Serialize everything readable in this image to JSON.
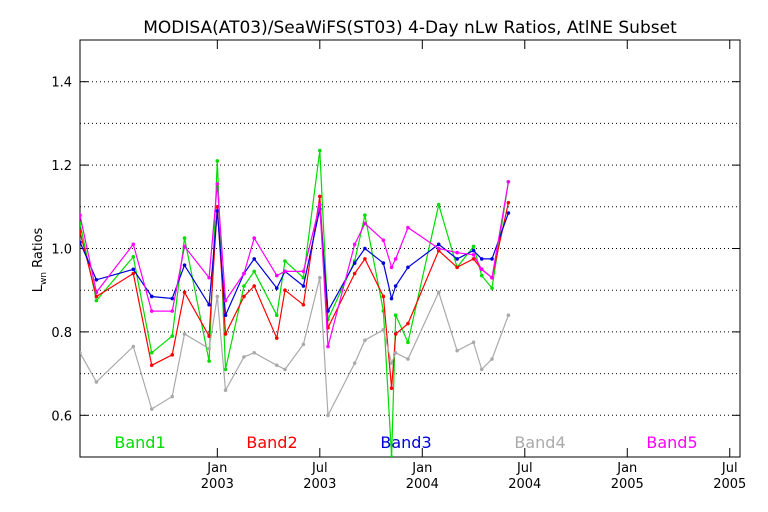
{
  "chart_data": {
    "type": "line",
    "title": "MODISA(AT03)/SeaWiFS(ST03) 4-Day nLw Ratios, AtlNE Subset",
    "ylabel_main": "L",
    "ylabel_sub": "wn",
    "ylabel_rest": " Ratios",
    "xlabel": "",
    "ylim": [
      0.5,
      1.5
    ],
    "y_ticks": [
      0.6,
      0.8,
      1.0,
      1.2,
      1.4
    ],
    "y_tick_labels": [
      "0.6",
      "0.8",
      "1.0",
      "1.2",
      "1.4"
    ],
    "grid": "horizontal dotted",
    "xlim": [
      2002.33,
      2005.55
    ],
    "x_ticks": [
      {
        "value": 2003.0,
        "month": "Jan",
        "year": "2003"
      },
      {
        "value": 2003.5,
        "month": "Jul",
        "year": "2003"
      },
      {
        "value": 2004.0,
        "month": "Jan",
        "year": "2004"
      },
      {
        "value": 2004.5,
        "month": "Jul",
        "year": "2004"
      },
      {
        "value": 2005.0,
        "month": "Jan",
        "year": "2005"
      },
      {
        "value": 2005.5,
        "month": "Jul",
        "year": "2005"
      }
    ],
    "series": [
      {
        "name": "Band1",
        "color": "#00dd00",
        "points": [
          [
            2002.33,
            1.06
          ],
          [
            2002.41,
            0.875
          ],
          [
            2002.59,
            0.98
          ],
          [
            2002.68,
            0.75
          ],
          [
            2002.78,
            0.79
          ],
          [
            2002.84,
            1.025
          ],
          [
            2002.96,
            0.73
          ],
          [
            2003.0,
            1.21
          ],
          [
            2003.04,
            0.71
          ],
          [
            2003.13,
            0.91
          ],
          [
            2003.18,
            0.945
          ],
          [
            2003.29,
            0.84
          ],
          [
            2003.33,
            0.97
          ],
          [
            2003.42,
            0.93
          ],
          [
            2003.5,
            1.235
          ],
          [
            2003.54,
            0.83
          ],
          [
            2003.67,
            0.97
          ],
          [
            2003.72,
            1.08
          ],
          [
            2003.81,
            0.85
          ],
          [
            2003.85,
            0.5
          ],
          [
            2003.87,
            0.84
          ],
          [
            2003.93,
            0.775
          ],
          [
            2004.08,
            1.105
          ],
          [
            2004.17,
            0.955
          ],
          [
            2004.25,
            1.005
          ],
          [
            2004.29,
            0.935
          ],
          [
            2004.34,
            0.905
          ],
          [
            2004.42,
            1.16
          ]
        ]
      },
      {
        "name": "Band2",
        "color": "#ff0000",
        "points": [
          [
            2002.33,
            1.04
          ],
          [
            2002.41,
            0.885
          ],
          [
            2002.59,
            0.94
          ],
          [
            2002.68,
            0.72
          ],
          [
            2002.78,
            0.745
          ],
          [
            2002.84,
            0.895
          ],
          [
            2002.96,
            0.79
          ],
          [
            2003.0,
            1.1
          ],
          [
            2003.04,
            0.795
          ],
          [
            2003.13,
            0.885
          ],
          [
            2003.18,
            0.91
          ],
          [
            2003.29,
            0.785
          ],
          [
            2003.33,
            0.9
          ],
          [
            2003.42,
            0.865
          ],
          [
            2003.5,
            1.125
          ],
          [
            2003.54,
            0.81
          ],
          [
            2003.67,
            0.94
          ],
          [
            2003.72,
            0.975
          ],
          [
            2003.81,
            0.885
          ],
          [
            2003.85,
            0.665
          ],
          [
            2003.87,
            0.795
          ],
          [
            2003.93,
            0.82
          ],
          [
            2004.08,
            0.995
          ],
          [
            2004.17,
            0.955
          ],
          [
            2004.25,
            0.975
          ],
          [
            2004.29,
            0.95
          ],
          [
            2004.34,
            0.93
          ],
          [
            2004.42,
            1.11
          ]
        ]
      },
      {
        "name": "Band3",
        "color": "#0000dd",
        "points": [
          [
            2002.33,
            1.015
          ],
          [
            2002.41,
            0.925
          ],
          [
            2002.59,
            0.95
          ],
          [
            2002.68,
            0.885
          ],
          [
            2002.78,
            0.88
          ],
          [
            2002.84,
            0.96
          ],
          [
            2002.96,
            0.865
          ],
          [
            2003.0,
            1.09
          ],
          [
            2003.04,
            0.84
          ],
          [
            2003.13,
            0.94
          ],
          [
            2003.18,
            0.975
          ],
          [
            2003.29,
            0.905
          ],
          [
            2003.33,
            0.945
          ],
          [
            2003.42,
            0.91
          ],
          [
            2003.5,
            1.095
          ],
          [
            2003.54,
            0.85
          ],
          [
            2003.67,
            0.965
          ],
          [
            2003.72,
            1.0
          ],
          [
            2003.81,
            0.965
          ],
          [
            2003.85,
            0.88
          ],
          [
            2003.87,
            0.91
          ],
          [
            2003.93,
            0.955
          ],
          [
            2004.08,
            1.01
          ],
          [
            2004.17,
            0.975
          ],
          [
            2004.25,
            0.995
          ],
          [
            2004.29,
            0.975
          ],
          [
            2004.34,
            0.975
          ],
          [
            2004.42,
            1.085
          ]
        ]
      },
      {
        "name": "Band4",
        "color": "#aaaaaa",
        "points": [
          [
            2002.33,
            0.75
          ],
          [
            2002.41,
            0.68
          ],
          [
            2002.59,
            0.765
          ],
          [
            2002.68,
            0.615
          ],
          [
            2002.78,
            0.645
          ],
          [
            2002.84,
            0.795
          ],
          [
            2002.96,
            0.76
          ],
          [
            2003.0,
            0.885
          ],
          [
            2003.04,
            0.66
          ],
          [
            2003.13,
            0.74
          ],
          [
            2003.18,
            0.75
          ],
          [
            2003.29,
            0.72
          ],
          [
            2003.33,
            0.71
          ],
          [
            2003.42,
            0.77
          ],
          [
            2003.5,
            0.93
          ],
          [
            2003.54,
            0.6
          ],
          [
            2003.67,
            0.725
          ],
          [
            2003.72,
            0.78
          ],
          [
            2003.81,
            0.805
          ],
          [
            2003.85,
            0.725
          ],
          [
            2003.87,
            0.75
          ],
          [
            2003.93,
            0.735
          ],
          [
            2004.08,
            0.895
          ],
          [
            2004.17,
            0.755
          ],
          [
            2004.25,
            0.775
          ],
          [
            2004.29,
            0.71
          ],
          [
            2004.34,
            0.735
          ],
          [
            2004.42,
            0.84
          ]
        ]
      },
      {
        "name": "Band5",
        "color": "#ff00ff",
        "points": [
          [
            2002.33,
            1.08
          ],
          [
            2002.41,
            0.895
          ],
          [
            2002.59,
            1.01
          ],
          [
            2002.68,
            0.85
          ],
          [
            2002.78,
            0.85
          ],
          [
            2002.84,
            1.005
          ],
          [
            2002.96,
            0.93
          ],
          [
            2003.0,
            1.155
          ],
          [
            2003.04,
            0.875
          ],
          [
            2003.13,
            0.94
          ],
          [
            2003.18,
            1.025
          ],
          [
            2003.29,
            0.935
          ],
          [
            2003.33,
            0.945
          ],
          [
            2003.42,
            0.945
          ],
          [
            2003.5,
            1.105
          ],
          [
            2003.54,
            0.765
          ],
          [
            2003.67,
            1.01
          ],
          [
            2003.72,
            1.06
          ],
          [
            2003.81,
            1.02
          ],
          [
            2003.85,
            0.955
          ],
          [
            2003.87,
            0.975
          ],
          [
            2003.93,
            1.05
          ],
          [
            2004.08,
            1.0
          ],
          [
            2004.17,
            0.99
          ],
          [
            2004.25,
            0.985
          ],
          [
            2004.29,
            0.95
          ],
          [
            2004.34,
            0.93
          ],
          [
            2004.42,
            1.16
          ]
        ]
      }
    ],
    "legend": [
      {
        "name": "Band1",
        "color": "#00dd00"
      },
      {
        "name": "Band2",
        "color": "#ff0000"
      },
      {
        "name": "Band3",
        "color": "#0000dd"
      },
      {
        "name": "Band4",
        "color": "#aaaaaa"
      },
      {
        "name": "Band5",
        "color": "#ff00ff"
      }
    ],
    "legend_placement": "bottom inside plot"
  }
}
